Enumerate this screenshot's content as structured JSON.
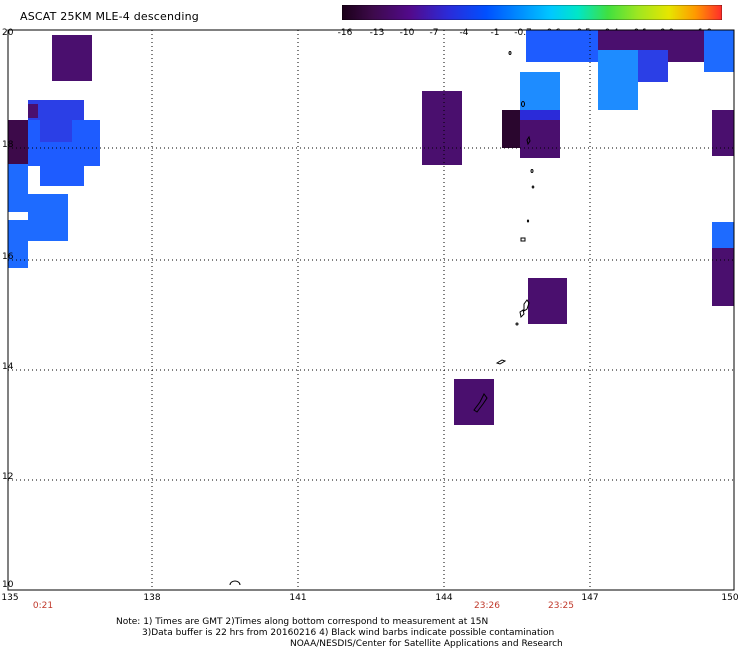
{
  "title": "ASCAT 25KM MLE-4 descending",
  "colorbar": {
    "ticks": [
      "-16",
      "-13",
      "-10",
      "-7",
      "-4",
      "-1",
      "-0.7",
      "-0.6",
      "-0.5",
      "-0.4",
      "-0.1",
      "0.0",
      "1.0"
    ],
    "colors": [
      "#1a0018",
      "#3d0a4a",
      "#520a8c",
      "#2b2bd9",
      "#0050ff",
      "#0096ff",
      "#00c8ff",
      "#00e6c8",
      "#40e040",
      "#a0e620",
      "#e6e600",
      "#ff9900",
      "#ff2b2b"
    ]
  },
  "y_axis": {
    "labels": [
      "20",
      "18",
      "16",
      "14",
      "12",
      "10"
    ]
  },
  "x_axis": {
    "labels": [
      "135",
      "138",
      "141",
      "144",
      "147",
      "150"
    ]
  },
  "time_labels": [
    "0:21",
    "23:26",
    "23:25"
  ],
  "notes": [
    "Note: 1) Times are GMT 2)Times along bottom correspond to measurement at 15N",
    "3)Data buffer is 22 hrs from 20160216 4) Black wind barbs indicate possible contamination",
    "NOAA/NESDIS/Center for Satellite Applications and Research"
  ]
}
